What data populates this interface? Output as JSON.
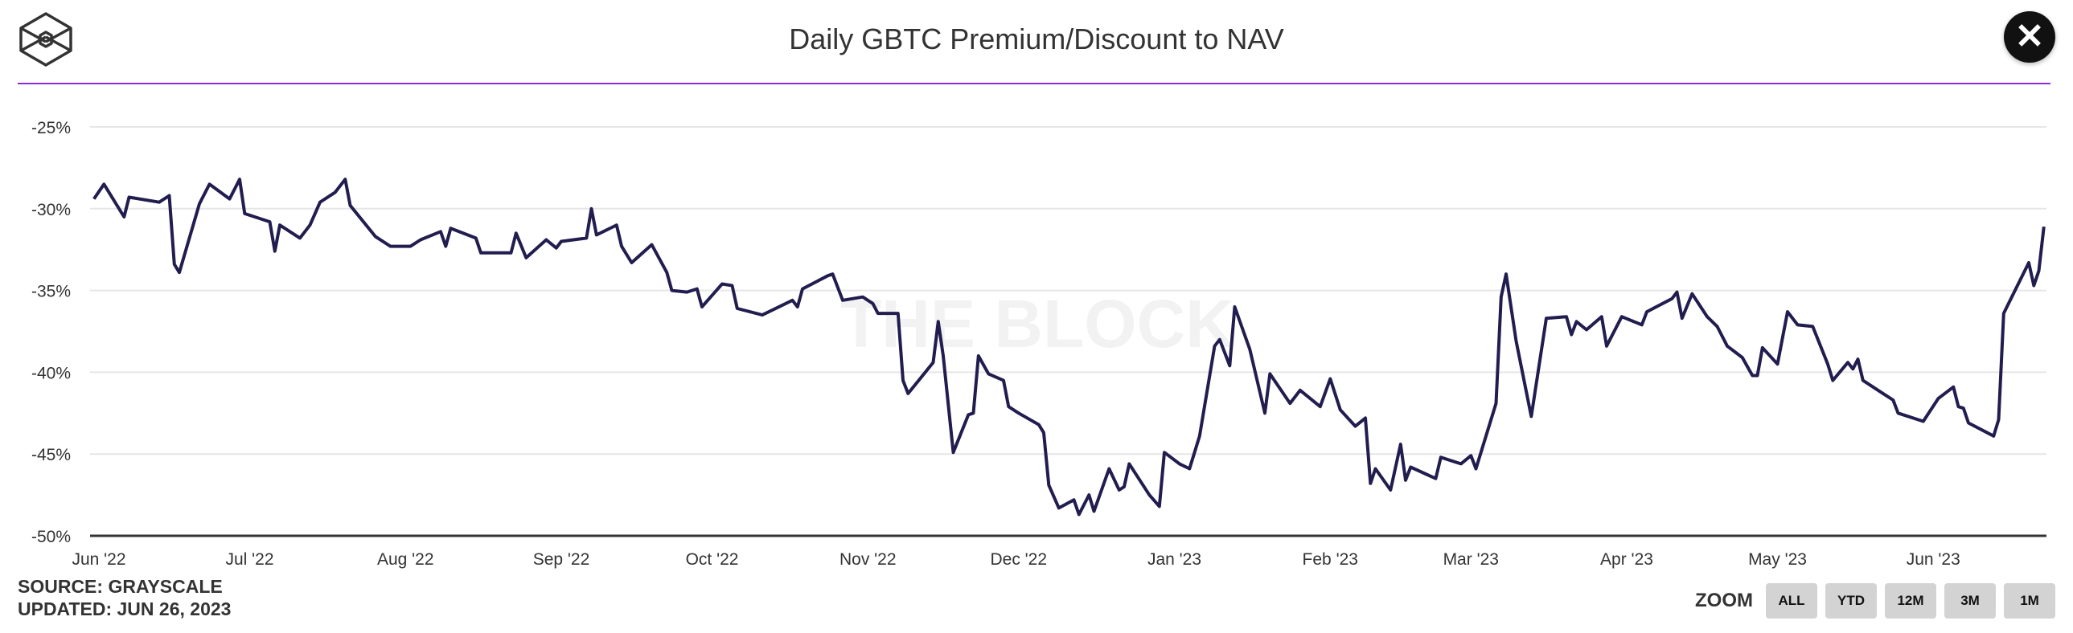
{
  "header": {
    "title": "Daily GBTC Premium/Discount to NAV",
    "logo": "the-block-cube-logo",
    "close_icon": "close-icon"
  },
  "footer": {
    "source": "SOURCE: GRAYSCALE",
    "updated": "UPDATED: JUN 26, 2023"
  },
  "zoom": {
    "label": "ZOOM",
    "buttons": [
      "ALL",
      "YTD",
      "12M",
      "3M",
      "1M"
    ]
  },
  "watermark": "THE BLOCK",
  "colors": {
    "line": "#221d4f",
    "accent_rule": "#8a2be2",
    "grid": "#e6e6e6"
  },
  "chart_data": {
    "type": "line",
    "title": "Daily GBTC Premium/Discount to NAV",
    "xlabel": "",
    "ylabel": "",
    "ylim": [
      -50,
      -25
    ],
    "yticks": [
      "-25%",
      "-30%",
      "-35%",
      "-40%",
      "-45%",
      "-50%"
    ],
    "ytick_values": [
      -25,
      -30,
      -35,
      -40,
      -45,
      -50
    ],
    "xticks": [
      "Jun '22",
      "Jul '22",
      "Aug '22",
      "Sep '22",
      "Oct '22",
      "Nov '22",
      "Dec '22",
      "Jan '23",
      "Feb '23",
      "Mar '23",
      "Apr '23",
      "May '23",
      "Jun '23"
    ],
    "xtick_dates": [
      "2022-06-01",
      "2022-07-01",
      "2022-08-01",
      "2022-09-01",
      "2022-10-01",
      "2022-11-01",
      "2022-12-01",
      "2023-01-01",
      "2023-02-01",
      "2023-03-01",
      "2023-04-01",
      "2023-05-01",
      "2023-06-01"
    ],
    "grid": true,
    "series": [
      {
        "points": [
          [
            "2022-05-31",
            -29.4
          ],
          [
            "2022-06-02",
            -28.5
          ],
          [
            "2022-06-06",
            -30.5
          ],
          [
            "2022-06-07",
            -29.3
          ],
          [
            "2022-06-13",
            -29.6
          ],
          [
            "2022-06-15",
            -29.2
          ],
          [
            "2022-06-16",
            -33.4
          ],
          [
            "2022-06-17",
            -33.9
          ],
          [
            "2022-06-21",
            -29.7
          ],
          [
            "2022-06-23",
            -28.5
          ],
          [
            "2022-06-27",
            -29.4
          ],
          [
            "2022-06-29",
            -28.2
          ],
          [
            "2022-06-30",
            -30.3
          ],
          [
            "2022-07-05",
            -30.8
          ],
          [
            "2022-07-06",
            -32.6
          ],
          [
            "2022-07-07",
            -31.0
          ],
          [
            "2022-07-11",
            -31.8
          ],
          [
            "2022-07-13",
            -31.0
          ],
          [
            "2022-07-15",
            -29.6
          ],
          [
            "2022-07-18",
            -29.0
          ],
          [
            "2022-07-20",
            -28.2
          ],
          [
            "2022-07-21",
            -29.8
          ],
          [
            "2022-07-26",
            -31.7
          ],
          [
            "2022-07-29",
            -32.3
          ],
          [
            "2022-08-02",
            -32.3
          ],
          [
            "2022-08-04",
            -31.9
          ],
          [
            "2022-08-08",
            -31.4
          ],
          [
            "2022-08-09",
            -32.3
          ],
          [
            "2022-08-10",
            -31.2
          ],
          [
            "2022-08-15",
            -31.8
          ],
          [
            "2022-08-16",
            -32.7
          ],
          [
            "2022-08-22",
            -32.7
          ],
          [
            "2022-08-23",
            -31.5
          ],
          [
            "2022-08-25",
            -33.0
          ],
          [
            "2022-08-29",
            -31.9
          ],
          [
            "2022-08-31",
            -32.4
          ],
          [
            "2022-09-01",
            -32.0
          ],
          [
            "2022-09-06",
            -31.8
          ],
          [
            "2022-09-07",
            -30.0
          ],
          [
            "2022-09-08",
            -31.6
          ],
          [
            "2022-09-12",
            -31.0
          ],
          [
            "2022-09-13",
            -32.3
          ],
          [
            "2022-09-15",
            -33.3
          ],
          [
            "2022-09-19",
            -32.2
          ],
          [
            "2022-09-22",
            -33.9
          ],
          [
            "2022-09-23",
            -35.0
          ],
          [
            "2022-09-26",
            -35.1
          ],
          [
            "2022-09-28",
            -34.9
          ],
          [
            "2022-09-29",
            -36.0
          ],
          [
            "2022-10-03",
            -34.6
          ],
          [
            "2022-10-05",
            -34.7
          ],
          [
            "2022-10-06",
            -36.1
          ],
          [
            "2022-10-11",
            -36.5
          ],
          [
            "2022-10-17",
            -35.6
          ],
          [
            "2022-10-18",
            -36.0
          ],
          [
            "2022-10-19",
            -34.9
          ],
          [
            "2022-10-24",
            -34.1
          ],
          [
            "2022-10-25",
            -34.0
          ],
          [
            "2022-10-27",
            -35.6
          ],
          [
            "2022-10-31",
            -35.4
          ],
          [
            "2022-11-02",
            -35.8
          ],
          [
            "2022-11-03",
            -36.4
          ],
          [
            "2022-11-07",
            -36.4
          ],
          [
            "2022-11-08",
            -40.5
          ],
          [
            "2022-11-09",
            -41.3
          ],
          [
            "2022-11-14",
            -39.4
          ],
          [
            "2022-11-15",
            -36.9
          ],
          [
            "2022-11-16",
            -39.0
          ],
          [
            "2022-11-18",
            -44.9
          ],
          [
            "2022-11-21",
            -42.6
          ],
          [
            "2022-11-22",
            -42.5
          ],
          [
            "2022-11-23",
            -39.0
          ],
          [
            "2022-11-25",
            -40.1
          ],
          [
            "2022-11-28",
            -40.5
          ],
          [
            "2022-11-29",
            -42.1
          ],
          [
            "2022-12-01",
            -42.5
          ],
          [
            "2022-12-05",
            -43.2
          ],
          [
            "2022-12-06",
            -43.7
          ],
          [
            "2022-12-07",
            -46.9
          ],
          [
            "2022-12-09",
            -48.3
          ],
          [
            "2022-12-12",
            -47.8
          ],
          [
            "2022-12-13",
            -48.7
          ],
          [
            "2022-12-15",
            -47.5
          ],
          [
            "2022-12-16",
            -48.5
          ],
          [
            "2022-12-19",
            -45.9
          ],
          [
            "2022-12-21",
            -47.2
          ],
          [
            "2022-12-22",
            -47.0
          ],
          [
            "2022-12-23",
            -45.6
          ],
          [
            "2022-12-27",
            -47.5
          ],
          [
            "2022-12-29",
            -48.2
          ],
          [
            "2022-12-30",
            -44.9
          ],
          [
            "2023-01-02",
            -45.6
          ],
          [
            "2023-01-04",
            -45.9
          ],
          [
            "2023-01-06",
            -43.9
          ],
          [
            "2023-01-09",
            -38.4
          ],
          [
            "2023-01-10",
            -38.0
          ],
          [
            "2023-01-12",
            -39.6
          ],
          [
            "2023-01-13",
            -36.0
          ],
          [
            "2023-01-16",
            -38.6
          ],
          [
            "2023-01-19",
            -42.5
          ],
          [
            "2023-01-20",
            -40.1
          ],
          [
            "2023-01-24",
            -41.9
          ],
          [
            "2023-01-26",
            -41.1
          ],
          [
            "2023-01-30",
            -42.1
          ],
          [
            "2023-02-01",
            -40.4
          ],
          [
            "2023-02-03",
            -42.3
          ],
          [
            "2023-02-06",
            -43.3
          ],
          [
            "2023-02-08",
            -42.8
          ],
          [
            "2023-02-09",
            -46.8
          ],
          [
            "2023-02-10",
            -45.9
          ],
          [
            "2023-02-13",
            -47.2
          ],
          [
            "2023-02-15",
            -44.4
          ],
          [
            "2023-02-16",
            -46.6
          ],
          [
            "2023-02-17",
            -45.8
          ],
          [
            "2023-02-22",
            -46.5
          ],
          [
            "2023-02-23",
            -45.2
          ],
          [
            "2023-02-27",
            -45.6
          ],
          [
            "2023-03-01",
            -45.1
          ],
          [
            "2023-03-02",
            -45.9
          ],
          [
            "2023-03-06",
            -41.9
          ],
          [
            "2023-03-07",
            -35.4
          ],
          [
            "2023-03-08",
            -34.0
          ],
          [
            "2023-03-10",
            -38.1
          ],
          [
            "2023-03-13",
            -42.7
          ],
          [
            "2023-03-16",
            -36.7
          ],
          [
            "2023-03-20",
            -36.6
          ],
          [
            "2023-03-21",
            -37.7
          ],
          [
            "2023-03-22",
            -36.9
          ],
          [
            "2023-03-24",
            -37.4
          ],
          [
            "2023-03-27",
            -36.6
          ],
          [
            "2023-03-28",
            -38.4
          ],
          [
            "2023-03-31",
            -36.6
          ],
          [
            "2023-04-04",
            -37.1
          ],
          [
            "2023-04-05",
            -36.3
          ],
          [
            "2023-04-10",
            -35.5
          ],
          [
            "2023-04-11",
            -35.1
          ],
          [
            "2023-04-12",
            -36.7
          ],
          [
            "2023-04-14",
            -35.2
          ],
          [
            "2023-04-17",
            -36.6
          ],
          [
            "2023-04-19",
            -37.2
          ],
          [
            "2023-04-21",
            -38.4
          ],
          [
            "2023-04-24",
            -39.1
          ],
          [
            "2023-04-26",
            -40.2
          ],
          [
            "2023-04-27",
            -40.2
          ],
          [
            "2023-04-28",
            -38.5
          ],
          [
            "2023-05-01",
            -39.5
          ],
          [
            "2023-05-03",
            -36.3
          ],
          [
            "2023-05-05",
            -37.1
          ],
          [
            "2023-05-08",
            -37.2
          ],
          [
            "2023-05-11",
            -39.5
          ],
          [
            "2023-05-12",
            -40.5
          ],
          [
            "2023-05-15",
            -39.4
          ],
          [
            "2023-05-16",
            -39.8
          ],
          [
            "2023-05-17",
            -39.2
          ],
          [
            "2023-05-18",
            -40.5
          ],
          [
            "2023-05-22",
            -41.3
          ],
          [
            "2023-05-24",
            -41.7
          ],
          [
            "2023-05-25",
            -42.5
          ],
          [
            "2023-05-30",
            -43.0
          ],
          [
            "2023-06-02",
            -41.6
          ],
          [
            "2023-06-05",
            -40.9
          ],
          [
            "2023-06-06",
            -42.1
          ],
          [
            "2023-06-07",
            -42.2
          ],
          [
            "2023-06-08",
            -43.1
          ],
          [
            "2023-06-13",
            -43.9
          ],
          [
            "2023-06-14",
            -42.9
          ],
          [
            "2023-06-15",
            -36.4
          ],
          [
            "2023-06-20",
            -33.3
          ],
          [
            "2023-06-21",
            -34.7
          ],
          [
            "2023-06-22",
            -33.8
          ],
          [
            "2023-06-23",
            -31.1
          ]
        ]
      }
    ]
  }
}
